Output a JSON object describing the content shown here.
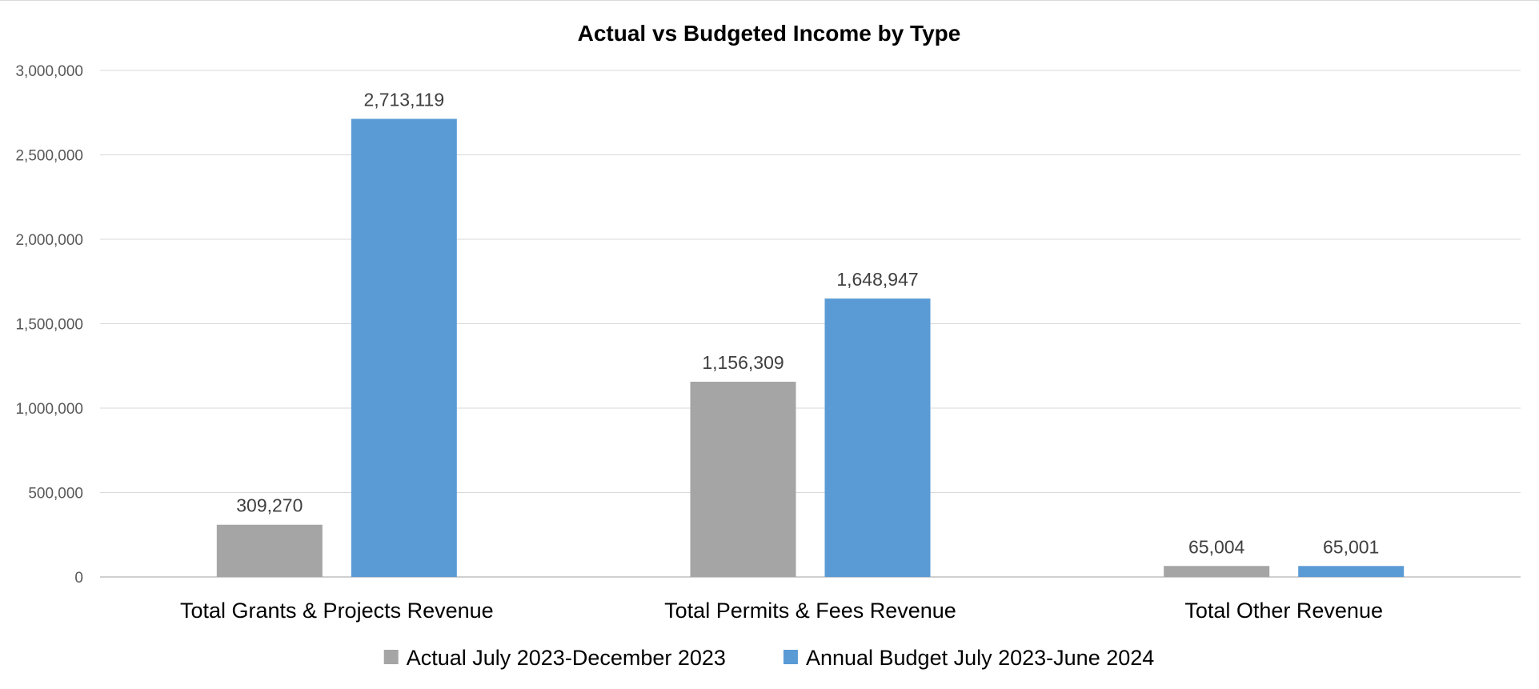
{
  "chart_data": {
    "type": "bar",
    "title": "Actual vs Budgeted Income by Type",
    "xlabel": "",
    "ylabel": "",
    "categories": [
      "Total Grants & Projects Revenue",
      "Total Permits & Fees Revenue",
      "Total Other Revenue"
    ],
    "series": [
      {
        "name": "Actual July 2023-December 2023",
        "color": "#a5a5a5",
        "values": [
          309270,
          1156309,
          65004
        ],
        "labels": [
          "309,270",
          "1,156,309",
          "65,004"
        ]
      },
      {
        "name": "Annual Budget July 2023-June 2024",
        "color": "#5b9bd5",
        "values": [
          2713119,
          1648947,
          65001
        ],
        "labels": [
          "2,713,119",
          "1,648,947",
          "65,001"
        ]
      }
    ],
    "ylim": [
      0,
      3000000
    ],
    "yticks": [
      0,
      500000,
      1000000,
      1500000,
      2000000,
      2500000,
      3000000
    ],
    "ytick_labels": [
      "0",
      "500,000",
      "1,000,000",
      "1,500,000",
      "2,000,000",
      "2,500,000",
      "3,000,000"
    ],
    "grid": true,
    "legend_position": "bottom"
  }
}
